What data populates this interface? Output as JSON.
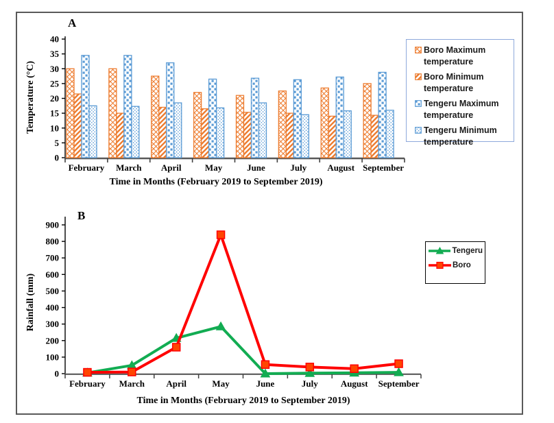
{
  "panels": {
    "a": {
      "label": "A",
      "xlabel": "Time in Months (February 2019 to September 2019)",
      "ylabel": "Temperature (°C)"
    },
    "b": {
      "label": "B",
      "xlabel": "Time in Months (February 2019 to September 2019)",
      "ylabel": "Rainfall (mm)"
    }
  },
  "colors": {
    "boro_orange": "#ED7D31",
    "tengeru_blue": "#5B9BD5",
    "rain_tengeru_green": "#12AC52",
    "rain_boro_red": "#FF0000",
    "frame_gray": "#595959",
    "legend_a_border": "#8EA9DB"
  },
  "chart_data": [
    {
      "type": "bar",
      "panel": "A",
      "categories": [
        "February",
        "March",
        "April",
        "May",
        "June",
        "July",
        "August",
        "September"
      ],
      "series": [
        {
          "name": "Boro Maximum temperature",
          "pattern": "crosshatch",
          "color": "#ED7D31",
          "values": [
            30,
            30,
            27.5,
            22,
            21,
            22.5,
            23.5,
            25
          ]
        },
        {
          "name": "Boro Minimum temperature",
          "pattern": "diagonal",
          "color": "#ED7D31",
          "values": [
            21.5,
            15,
            17,
            16.5,
            15.3,
            15,
            14,
            14.3
          ]
        },
        {
          "name": "Tengeru Maximum temperature",
          "pattern": "checker",
          "color": "#5B9BD5",
          "values": [
            34.5,
            34.5,
            32,
            26.5,
            26.8,
            26.3,
            27.2,
            28.8
          ]
        },
        {
          "name": "Tengeru Minimum temperature",
          "pattern": "dots",
          "color": "#5B9BD5",
          "values": [
            17.5,
            17.3,
            18.5,
            16.8,
            18.5,
            14.5,
            15.8,
            16
          ]
        }
      ],
      "xlabel": "Time in Months (February 2019 to September 2019)",
      "ylabel": "Temperature (°C)",
      "ylim": [
        0,
        40
      ],
      "ytick_step": 5,
      "grid": false,
      "legend_position": "right"
    },
    {
      "type": "line",
      "panel": "B",
      "categories": [
        "February",
        "March",
        "April",
        "May",
        "June",
        "July",
        "August",
        "September"
      ],
      "series": [
        {
          "name": "Tengeru",
          "color": "#12AC52",
          "marker": "triangle",
          "marker_fill": "#12AC52",
          "values": [
            5,
            50,
            215,
            285,
            0,
            3,
            5,
            8
          ]
        },
        {
          "name": "Boro",
          "color": "#FF0000",
          "marker": "square",
          "marker_fill": "#FF4500",
          "values": [
            8,
            10,
            160,
            840,
            55,
            40,
            30,
            60
          ]
        }
      ],
      "xlabel": "Time in Months (February 2019 to September 2019)",
      "ylabel": "Rainfall (mm)",
      "ylim": [
        0,
        900
      ],
      "ytick_step": 100,
      "grid": false,
      "legend_position": "right"
    }
  ]
}
